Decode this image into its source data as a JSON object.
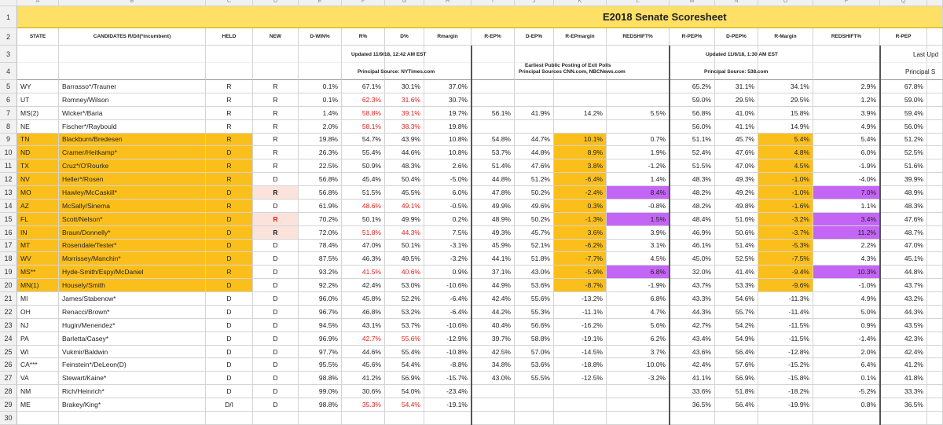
{
  "column_letters": [
    "A",
    "B",
    "C",
    "D",
    "E",
    "F",
    "G",
    "H",
    "I",
    "J",
    "K",
    "L",
    "M",
    "N",
    "O",
    "P",
    "Q"
  ],
  "row_numbers": [
    1,
    2,
    3,
    4,
    5,
    6,
    7,
    8,
    9,
    10,
    11,
    12,
    13,
    14,
    15,
    16,
    17,
    18,
    19,
    20,
    21,
    22,
    23,
    24,
    25,
    26,
    27,
    28,
    29,
    30
  ],
  "title": "E2018 Senate Scoresheet",
  "headers": [
    "STATE",
    "CANDIDATES R/D/I(*incumbent)",
    "HELD",
    "NEW",
    "D-WIN%",
    "R%",
    "D%",
    "Rmargin",
    "R-EP%",
    "D-EP%",
    "R-EPmargin",
    "REDSHIFT%",
    "R-PEP%",
    "D-PEP%",
    "R-Margin",
    "REDSHIFT%",
    "R-PEP"
  ],
  "notes": {
    "nyt_updated": "Updated 11/9/18, 12:42 AM EST",
    "nyt_source": "Principal Source: NYTimes.com",
    "exit_title": "Earliest Public Posting of Exit Polls",
    "exit_source": "Principal Sources CNN.com, NBCNews.com",
    "pep_updated": "Updated 11/6/18, 1:30 AM EST",
    "pep_source": "Principal Source: 538.com",
    "last_updated": "Last Upd",
    "last_source": "Principal S"
  },
  "rows": [
    [
      "WY",
      "Barrasso*/Trauner",
      "R",
      "R",
      "0.1%",
      "67.1%",
      "30.1%",
      "37.0%",
      null,
      null,
      null,
      null,
      "65.2%",
      "31.1%",
      "34.1%",
      "2.9%",
      "67.8%"
    ],
    [
      "UT",
      "Romney/Wilson",
      "R",
      "R",
      "0.1%",
      "62.3%",
      "31.6%",
      "30.7%",
      null,
      null,
      null,
      null,
      "59.0%",
      "29.5%",
      "29.5%",
      "1.2%",
      "59.0%"
    ],
    [
      "MS(2)",
      "Wicker*/Baria",
      "R",
      "R",
      "1.4%",
      "58.8%",
      "39.1%",
      "19.7%",
      "56.1%",
      "41.9%",
      "14.2%",
      "5.5%",
      "56.8%",
      "41.0%",
      "15.8%",
      "3.9%",
      "59.4%"
    ],
    [
      "NE",
      "Fischer*/Raybould",
      "R",
      "R",
      "2.0%",
      "58.1%",
      "38.3%",
      "19.8%",
      null,
      null,
      null,
      null,
      "56.0%",
      "41.1%",
      "14.9%",
      "4.9%",
      "56.0%"
    ],
    [
      "TN",
      "Blackburn/Bredesen",
      "R",
      "R",
      "19.8%",
      "54.7%",
      "43.9%",
      "10.8%",
      "54.8%",
      "44.7%",
      "10.1%",
      "0.7%",
      "51.1%",
      "45.7%",
      "5.4%",
      "5.4%",
      "51.2%"
    ],
    [
      "ND",
      "Cramer/Heitkamp*",
      "D",
      "R",
      "26.3%",
      "55.4%",
      "44.6%",
      "10.8%",
      "53.7%",
      "44.8%",
      "8.9%",
      "1.9%",
      "52.4%",
      "47.6%",
      "4.8%",
      "6.0%",
      "52.5%"
    ],
    [
      "TX",
      "Cruz*/O'Rourke",
      "R",
      "R",
      "22.5%",
      "50.9%",
      "48.3%",
      "2.6%",
      "51.4%",
      "47.6%",
      "3.8%",
      "-1.2%",
      "51.5%",
      "47.0%",
      "4.5%",
      "-1.9%",
      "51.6%"
    ],
    [
      "NV",
      "Heller*/Rosen",
      "R",
      "D",
      "56.8%",
      "45.4%",
      "50.4%",
      "-5.0%",
      "44.8%",
      "51.2%",
      "-6.4%",
      "1.4%",
      "48.3%",
      "49.3%",
      "-1.0%",
      "-4.0%",
      "39.9%"
    ],
    [
      "MO",
      "Hawley/McCaskill*",
      "D",
      "R",
      "56.8%",
      "51.5%",
      "45.5%",
      "6.0%",
      "47.8%",
      "50.2%",
      "-2.4%",
      "8.4%",
      "48.2%",
      "49.2%",
      "-1.0%",
      "7.0%",
      "48.9%"
    ],
    [
      "AZ",
      "McSally/Sinema",
      "R",
      "D",
      "61.9%",
      "48.6%",
      "49.1%",
      "-0.5%",
      "49.9%",
      "49.6%",
      "0.3%",
      "-0.8%",
      "48.2%",
      "49.8%",
      "-1.6%",
      "1.1%",
      "48.3%"
    ],
    [
      "FL",
      "Scott/Nelson*",
      "D",
      "R",
      "70.2%",
      "50.1%",
      "49.9%",
      "0.2%",
      "48.9%",
      "50.2%",
      "-1.3%",
      "1.5%",
      "48.4%",
      "51.6%",
      "-3.2%",
      "3.4%",
      "47.6%"
    ],
    [
      "IN",
      "Braun/Donnelly*",
      "D",
      "R",
      "72.0%",
      "51.8%",
      "44.3%",
      "7.5%",
      "49.3%",
      "45.7%",
      "3.6%",
      "3.9%",
      "46.9%",
      "50.6%",
      "-3.7%",
      "11.2%",
      "48.7%"
    ],
    [
      "MT",
      "Rosendale/Tester*",
      "D",
      "D",
      "78.4%",
      "47.0%",
      "50.1%",
      "-3.1%",
      "45.9%",
      "52.1%",
      "-6.2%",
      "3.1%",
      "46.1%",
      "51.4%",
      "-5.3%",
      "2.2%",
      "47.0%"
    ],
    [
      "WV",
      "Morrissey/Manchin*",
      "D",
      "D",
      "87.5%",
      "46.3%",
      "49.5%",
      "-3.2%",
      "44.1%",
      "51.8%",
      "-7.7%",
      "4.5%",
      "45.0%",
      "52.5%",
      "-7.5%",
      "4.3%",
      "45.1%"
    ],
    [
      "MS**",
      "Hyde-Smith/Espy/McDaniel",
      "R",
      "D",
      "93.2%",
      "41.5%",
      "40.6%",
      "0.9%",
      "37.1%",
      "43.0%",
      "-5.9%",
      "6.8%",
      "32.0%",
      "41.4%",
      "-9.4%",
      "10.3%",
      "44.8%"
    ],
    [
      "MN(1)",
      "Housely/Smith",
      "D",
      "D",
      "92.2%",
      "42.4%",
      "53.0%",
      "-10.6%",
      "44.9%",
      "53.6%",
      "-8.7%",
      "-1.9%",
      "43.7%",
      "53.3%",
      "-9.6%",
      "-1.0%",
      "43.7%"
    ],
    [
      "MI",
      "James/Stabenow*",
      "D",
      "D",
      "96.0%",
      "45.8%",
      "52.2%",
      "-6.4%",
      "42.4%",
      "55.6%",
      "-13.2%",
      "6.8%",
      "43.3%",
      "54.6%",
      "-11.3%",
      "4.9%",
      "43.2%"
    ],
    [
      "OH",
      "Renacci/Brown*",
      "D",
      "D",
      "96.7%",
      "46.8%",
      "53.2%",
      "-6.4%",
      "44.2%",
      "55.3%",
      "-11.1%",
      "4.7%",
      "44.3%",
      "55.7%",
      "-11.4%",
      "5.0%",
      "44.3%"
    ],
    [
      "NJ",
      "Hugin/Menendez*",
      "D",
      "D",
      "94.5%",
      "43.1%",
      "53.7%",
      "-10.6%",
      "40.4%",
      "56.6%",
      "-16.2%",
      "5.6%",
      "42.7%",
      "54.2%",
      "-11.5%",
      "0.9%",
      "43.5%"
    ],
    [
      "PA",
      "Barletta/Casey*",
      "D",
      "D",
      "96.9%",
      "42.7%",
      "55.6%",
      "-12.9%",
      "39.7%",
      "58.8%",
      "-19.1%",
      "6.2%",
      "43.4%",
      "54.9%",
      "-11.5%",
      "-1.4%",
      "42.3%"
    ],
    [
      "WI",
      "Vukmir/Baldwin",
      "D",
      "D",
      "97.7%",
      "44.6%",
      "55.4%",
      "-10.8%",
      "42.5%",
      "57.0%",
      "-14.5%",
      "3.7%",
      "43.6%",
      "56.4%",
      "-12.8%",
      "2.0%",
      "42.4%"
    ],
    [
      "CA***",
      "Feinstein*/DeLeon(D)",
      "D",
      "D",
      "95.5%",
      "45.6%",
      "54.4%",
      "-8.8%",
      "34.8%",
      "53.6%",
      "-18.8%",
      "10.0%",
      "42.4%",
      "57.6%",
      "-15.2%",
      "6.4%",
      "41.2%"
    ],
    [
      "VA",
      "Stewart/Kaine*",
      "D",
      "D",
      "98.8%",
      "41.2%",
      "56.9%",
      "-15.7%",
      "43.0%",
      "55.5%",
      "-12.5%",
      "-3.2%",
      "41.1%",
      "56.9%",
      "-15.8%",
      "0.1%",
      "41.8%"
    ],
    [
      "NM",
      "Rich/Heinrich*",
      "D",
      "D",
      "99.0%",
      "30.6%",
      "54.0%",
      "-23.4%",
      null,
      null,
      null,
      null,
      "33.6%",
      "51.8%",
      "-18.2%",
      "-5.2%",
      "33.3%"
    ],
    [
      "ME",
      "Brakey/King*",
      "D/I",
      "D",
      "98.8%",
      "35.3%",
      "54.4%",
      "-19.1%",
      null,
      null,
      null,
      null,
      "36.5%",
      "56.4%",
      "-19.9%",
      "0.8%",
      "36.5%"
    ]
  ]
}
